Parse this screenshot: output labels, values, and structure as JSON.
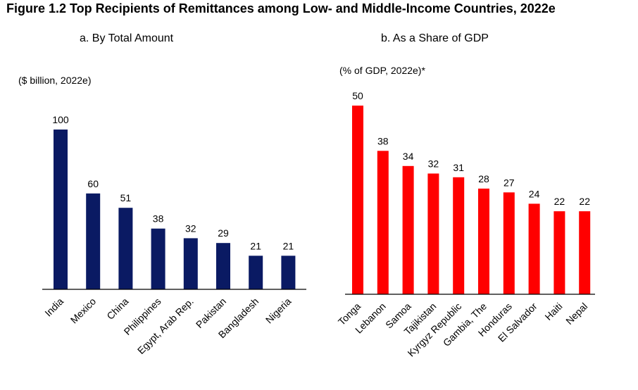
{
  "figure": {
    "title": "Figure 1.2 Top Recipients of Remittances among Low- and Middle-Income Countries, 2022e"
  },
  "colors": {
    "left_bars": "#0a1a63",
    "right_bars": "#ff0000",
    "axis": "#000000"
  },
  "chart_data": [
    {
      "type": "bar",
      "title": "a. By Total Amount",
      "ylabel": "($ billion, 2022e)",
      "categories": [
        "India",
        "Mexico",
        "China",
        "Philippines",
        "Egypt, Arab Rep.",
        "Pakistan",
        "Bangladesh",
        "Nigeria"
      ],
      "values": [
        100,
        60,
        51,
        38,
        32,
        29,
        21,
        21
      ],
      "ylim": [
        0,
        100
      ],
      "grid": false
    },
    {
      "type": "bar",
      "title": "b. As a Share of GDP",
      "ylabel": "(% of GDP, 2022e)*",
      "categories": [
        "Tonga",
        "Lebanon",
        "Samoa",
        "Tajikistan",
        "Kyrgyz Republic",
        "Gambia, The",
        "Honduras",
        "El Salvador",
        "Haiti",
        "Nepal"
      ],
      "values": [
        50,
        38,
        34,
        32,
        31,
        28,
        27,
        24,
        22,
        22
      ],
      "ylim": [
        0,
        50
      ],
      "grid": false
    }
  ]
}
